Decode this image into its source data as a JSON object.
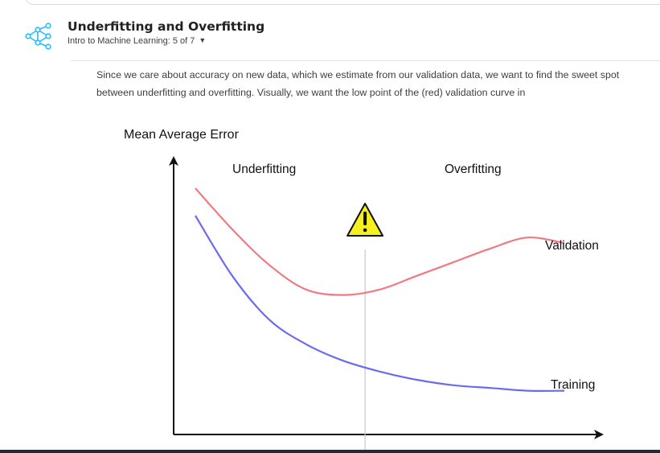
{
  "header": {
    "title": "Underfitting and Overfitting",
    "subtitle": "Intro to Machine Learning: 5 of 7",
    "dropdown_icon": "caret-down-icon",
    "course_icon": "network-nodes-icon",
    "accent_color": "#20beff"
  },
  "body": {
    "paragraph": "Since we care about accuracy on new data, which we estimate from our validation data, we want to find the sweet spot between underfitting and overfitting. Visually, we want the low point of the (red) validation curve in"
  },
  "figure": {
    "warning_icon": "warning-triangle-icon"
  },
  "chart_data": {
    "type": "line",
    "ylabel": "Mean Average Error",
    "xlabel": "",
    "annotations": [
      "Underfitting",
      "Overfitting"
    ],
    "x": [
      0,
      0.1,
      0.2,
      0.3,
      0.4,
      0.5,
      0.6,
      0.7,
      0.8,
      0.9,
      1.0
    ],
    "series": [
      {
        "name": "Validation",
        "color": "#f07a80",
        "values": [
          0.9,
          0.75,
          0.62,
          0.53,
          0.51,
          0.53,
          0.58,
          0.63,
          0.68,
          0.72,
          0.7
        ]
      },
      {
        "name": "Training",
        "color": "#6b6bf0",
        "values": [
          0.8,
          0.58,
          0.42,
          0.33,
          0.27,
          0.23,
          0.2,
          0.18,
          0.17,
          0.16,
          0.16
        ]
      }
    ],
    "marker_x": 0.46,
    "grid": false
  }
}
